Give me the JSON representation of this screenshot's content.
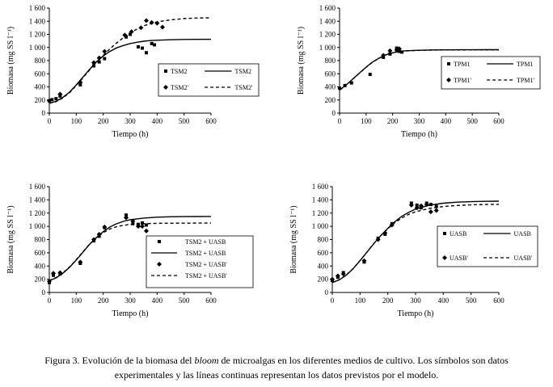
{
  "figure": {
    "caption_prefix": "Figura 3. Evolución de la biomasa del ",
    "caption_italic": "bloom",
    "caption_rest": " de microalgas en los diferentes medios de cultivo. Los símbolos son datos experimentales y las líneas continuas representan los datos previstos por el modelo."
  },
  "chart_data": [
    {
      "type": "scatter",
      "xlabel": "Tiempo (h)",
      "ylabel": "Biomasa (mg SS l⁻¹)",
      "xlim": [
        0,
        600
      ],
      "ylim": [
        0,
        1600
      ],
      "xticks": [
        "0",
        "100",
        "200",
        "300",
        "400",
        "500",
        "600"
      ],
      "yticks": [
        "0",
        "200",
        "400",
        "600",
        "800",
        "1 000",
        "1 200",
        "1 400",
        "1 600"
      ],
      "legend_position": "bottom-right",
      "series": [
        {
          "name": "TSM2",
          "kind": "points",
          "marker": "square",
          "x": [
            0,
            10,
            25,
            40,
            115,
            165,
            185,
            205,
            285,
            300,
            330,
            345,
            360,
            380,
            390
          ],
          "y": [
            185,
            205,
            220,
            260,
            430,
            720,
            780,
            830,
            1160,
            1200,
            1010,
            990,
            920,
            1060,
            1040
          ]
        },
        {
          "name": "TSM2",
          "kind": "line",
          "style": "solid",
          "x": [
            0,
            25,
            50,
            75,
            100,
            125,
            150,
            175,
            200,
            225,
            250,
            275,
            300,
            325,
            350,
            375,
            400,
            450,
            500,
            550,
            600
          ],
          "y": [
            150,
            180,
            240,
            320,
            430,
            550,
            670,
            780,
            870,
            940,
            995,
            1030,
            1060,
            1080,
            1095,
            1105,
            1110,
            1118,
            1122,
            1124,
            1125
          ]
        },
        {
          "name": "TSM2'",
          "kind": "points",
          "marker": "diamond",
          "x": [
            0,
            40,
            115,
            165,
            185,
            205,
            280,
            305,
            340,
            360,
            380,
            400,
            420
          ],
          "y": [
            190,
            290,
            470,
            770,
            840,
            940,
            1190,
            1240,
            1300,
            1410,
            1380,
            1370,
            1310
          ]
        },
        {
          "name": "TSM2'",
          "kind": "line",
          "style": "dashed",
          "x": [
            0,
            25,
            50,
            75,
            100,
            125,
            150,
            175,
            200,
            225,
            250,
            275,
            300,
            325,
            350,
            375,
            400,
            450,
            500,
            550,
            600
          ],
          "y": [
            150,
            175,
            230,
            310,
            420,
            540,
            660,
            780,
            880,
            980,
            1070,
            1150,
            1220,
            1280,
            1330,
            1360,
            1390,
            1420,
            1440,
            1448,
            1452
          ]
        }
      ]
    },
    {
      "type": "scatter",
      "xlabel": "Tiempo (h)",
      "ylabel": "Biomasa (mg SS l⁻¹)",
      "xlim": [
        0,
        600
      ],
      "ylim": [
        0,
        1600
      ],
      "xticks": [
        "0",
        "100",
        "200",
        "300",
        "400",
        "500",
        "600"
      ],
      "yticks": [
        "0",
        "200",
        "400",
        "600",
        "800",
        "1 000",
        "1 200",
        "1 400",
        "1 600"
      ],
      "legend_position": "bottom-right",
      "series": [
        {
          "name": "TPM1",
          "kind": "points",
          "marker": "square",
          "x": [
            0,
            20,
            45,
            115,
            165,
            190,
            215,
            225,
            235
          ],
          "y": [
            380,
            420,
            460,
            590,
            850,
            900,
            990,
            940,
            930
          ]
        },
        {
          "name": "TPM1",
          "kind": "line",
          "style": "solid",
          "x": [
            0,
            25,
            50,
            75,
            100,
            125,
            150,
            175,
            200,
            225,
            250,
            300,
            350,
            400,
            450,
            500,
            550,
            600
          ],
          "y": [
            350,
            430,
            520,
            610,
            700,
            780,
            840,
            890,
            920,
            940,
            950,
            958,
            962,
            964,
            965,
            965,
            966,
            966
          ]
        },
        {
          "name": "TPM1'",
          "kind": "points",
          "marker": "diamond",
          "x": [
            165,
            190,
            215,
            225
          ],
          "y": [
            880,
            950,
            960,
            980
          ]
        },
        {
          "name": "TPM1'",
          "kind": "line",
          "style": "dashed",
          "x": [
            0,
            25,
            50,
            75,
            100,
            125,
            150,
            175,
            200,
            225,
            250,
            300,
            350,
            400,
            450,
            500,
            550,
            600
          ],
          "y": [
            350,
            428,
            518,
            608,
            698,
            778,
            838,
            888,
            918,
            938,
            948,
            956,
            960,
            962,
            963,
            964,
            964,
            964
          ]
        }
      ]
    },
    {
      "type": "scatter",
      "xlabel": "Tiempo (h)",
      "ylabel": "Biomasa (mg SS l⁻¹)",
      "xlim": [
        0,
        600
      ],
      "ylim": [
        0,
        1600
      ],
      "xticks": [
        "0",
        "100",
        "200",
        "300",
        "400",
        "500",
        "600"
      ],
      "yticks": [
        "0",
        "200",
        "400",
        "600",
        "800",
        "1 000",
        "1 200",
        "1 400",
        "1 600"
      ],
      "legend_position": "bottom-right",
      "series": [
        {
          "name": "TSM2 + UASB",
          "kind": "points",
          "marker": "square",
          "x": [
            0,
            15,
            40,
            115,
            165,
            185,
            205,
            285,
            310,
            330,
            345,
            360
          ],
          "y": [
            150,
            260,
            280,
            440,
            780,
            850,
            980,
            1170,
            1040,
            1030,
            1050,
            1020
          ]
        },
        {
          "name": "TSM2 + UASB",
          "kind": "line",
          "style": "solid",
          "x": [
            0,
            25,
            50,
            75,
            100,
            125,
            150,
            175,
            200,
            225,
            250,
            275,
            300,
            350,
            400,
            450,
            500,
            550,
            600
          ],
          "y": [
            180,
            220,
            290,
            380,
            490,
            610,
            730,
            830,
            920,
            990,
            1040,
            1075,
            1100,
            1125,
            1138,
            1144,
            1147,
            1148,
            1149
          ]
        },
        {
          "name": "TSM2 + UASB'",
          "kind": "points",
          "marker": "diamond",
          "x": [
            0,
            15,
            40,
            115,
            165,
            185,
            205,
            285,
            310,
            330,
            345,
            360
          ],
          "y": [
            170,
            290,
            300,
            460,
            800,
            880,
            990,
            1130,
            1080,
            1000,
            1000,
            930
          ]
        },
        {
          "name": "TSM2 + UASB'",
          "kind": "line",
          "style": "dashed",
          "x": [
            0,
            25,
            50,
            75,
            100,
            125,
            150,
            175,
            200,
            225,
            250,
            275,
            300,
            350,
            400,
            450,
            500,
            550,
            600
          ],
          "y": [
            180,
            225,
            295,
            385,
            495,
            615,
            735,
            830,
            905,
            960,
            995,
            1015,
            1028,
            1040,
            1045,
            1047,
            1048,
            1049,
            1049
          ]
        }
      ]
    },
    {
      "type": "scatter",
      "xlabel": "Tiempo (h)",
      "ylabel": "Biomasa (mg SS l⁻¹)",
      "xlim": [
        0,
        600
      ],
      "ylim": [
        0,
        1600
      ],
      "xticks": [
        "0",
        "100",
        "200",
        "300",
        "400",
        "500",
        "600"
      ],
      "yticks": [
        "0",
        "200",
        "400",
        "600",
        "800",
        "1 000",
        "1 200",
        "1 400",
        "1 600"
      ],
      "legend_position": "bottom-right",
      "series": [
        {
          "name": "UASB",
          "kind": "points",
          "marker": "square",
          "x": [
            0,
            20,
            40,
            115,
            165,
            190,
            215,
            285,
            305,
            320,
            340,
            355,
            375
          ],
          "y": [
            180,
            230,
            300,
            460,
            820,
            880,
            1040,
            1350,
            1320,
            1280,
            1350,
            1330,
            1300
          ]
        },
        {
          "name": "UASB",
          "kind": "line",
          "style": "solid",
          "x": [
            0,
            25,
            50,
            75,
            100,
            125,
            150,
            175,
            200,
            225,
            250,
            275,
            300,
            350,
            400,
            450,
            500,
            550,
            600
          ],
          "y": [
            150,
            190,
            260,
            360,
            480,
            610,
            740,
            860,
            970,
            1070,
            1150,
            1210,
            1260,
            1320,
            1350,
            1365,
            1373,
            1378,
            1380
          ]
        },
        {
          "name": "UASB'",
          "kind": "points",
          "marker": "diamond",
          "x": [
            0,
            20,
            40,
            115,
            165,
            190,
            215,
            285,
            305,
            320,
            340,
            355,
            375
          ],
          "y": [
            200,
            250,
            280,
            480,
            800,
            900,
            1020,
            1320,
            1280,
            1310,
            1330,
            1220,
            1240
          ]
        },
        {
          "name": "UASB'",
          "kind": "line",
          "style": "dashed",
          "x": [
            0,
            25,
            50,
            75,
            100,
            125,
            150,
            175,
            200,
            225,
            250,
            275,
            300,
            350,
            400,
            450,
            500,
            550,
            600
          ],
          "y": [
            150,
            192,
            262,
            362,
            482,
            612,
            742,
            862,
            965,
            1055,
            1125,
            1180,
            1220,
            1270,
            1300,
            1316,
            1325,
            1330,
            1333
          ]
        }
      ]
    }
  ]
}
